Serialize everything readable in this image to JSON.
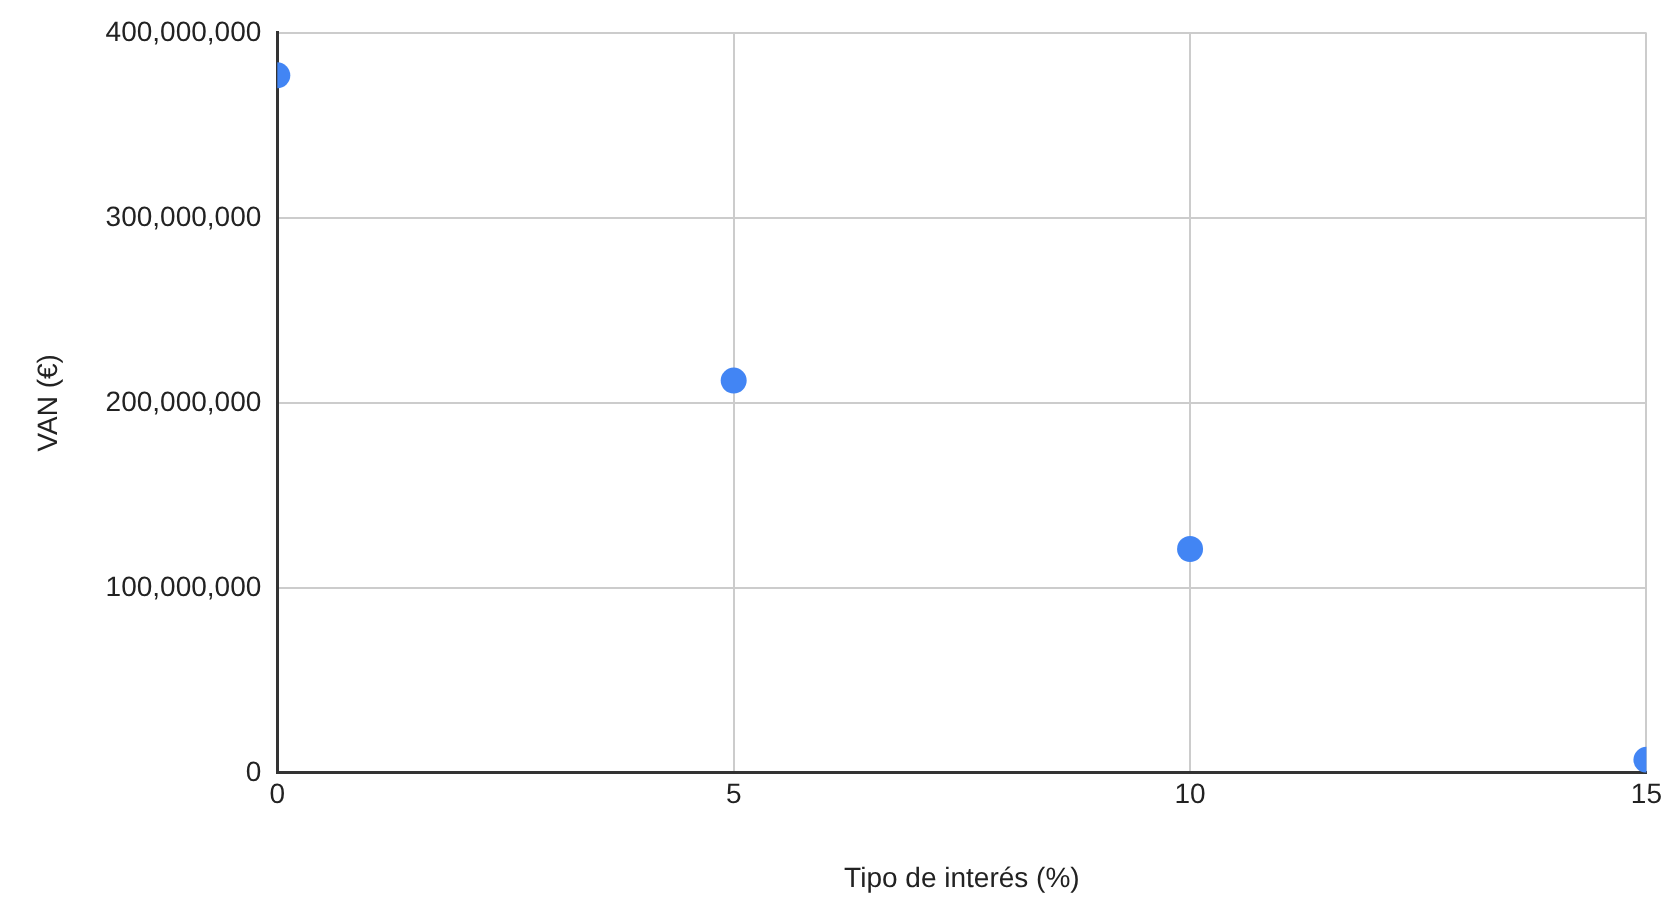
{
  "chart_data": {
    "type": "scatter",
    "xlabel": "Tipo de interés (%)",
    "ylabel": "VAN (€)",
    "x": [
      0,
      5,
      10,
      15
    ],
    "series": [
      {
        "color": "#4285f4",
        "values": [
          377000000,
          212000000,
          121000000,
          7000000
        ]
      }
    ],
    "xlim": [
      0,
      15
    ],
    "xticks": [
      0,
      5,
      10,
      15
    ],
    "ylim": [
      0,
      400000000
    ],
    "yticks": [
      {
        "value": 0,
        "label": "0"
      },
      {
        "value": 100000000,
        "label": "100,000,000"
      },
      {
        "value": 200000000,
        "label": "200,000,000"
      },
      {
        "value": 300000000,
        "label": "300,000,000"
      },
      {
        "value": 400000000,
        "label": "400,000,000"
      }
    ],
    "grid": true,
    "marker": "circle",
    "legend": false
  }
}
